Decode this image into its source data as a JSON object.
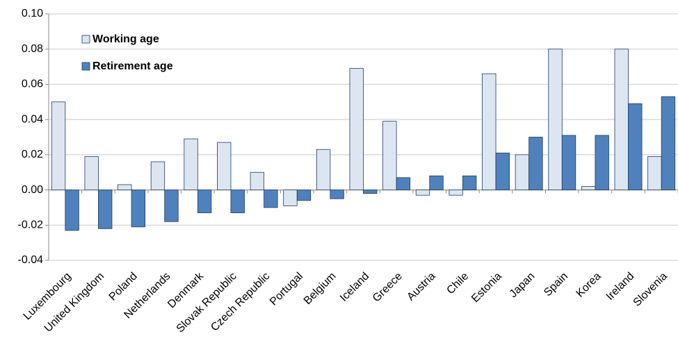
{
  "chart_data": {
    "type": "bar",
    "categories": [
      "Luxembourg",
      "United Kingdom",
      "Poland",
      "Netherlands",
      "Denmark",
      "Slovak Republic",
      "Czech Republic",
      "Portugal",
      "Belgium",
      "Iceland",
      "Greece",
      "Austria",
      "Chile",
      "Estonia",
      "Japan",
      "Spain",
      "Korea",
      "Ireland",
      "Slovenia"
    ],
    "series": [
      {
        "name": "Working age",
        "color": "#dce6f2",
        "values": [
          0.05,
          0.019,
          0.003,
          0.016,
          0.029,
          0.027,
          0.01,
          -0.009,
          0.023,
          0.069,
          0.039,
          -0.003,
          -0.003,
          0.066,
          0.02,
          0.08,
          0.002,
          0.08,
          0.019
        ]
      },
      {
        "name": "Retirement age",
        "color": "#4f81bd",
        "values": [
          -0.023,
          -0.022,
          -0.021,
          -0.018,
          -0.013,
          -0.013,
          -0.01,
          -0.006,
          -0.005,
          -0.002,
          0.007,
          0.008,
          0.008,
          0.021,
          0.03,
          0.031,
          0.031,
          0.049,
          0.053
        ]
      }
    ],
    "ylim": [
      -0.04,
      0.1
    ],
    "yticks": [
      {
        "value": 0.1,
        "label": "0.10"
      },
      {
        "value": 0.08,
        "label": "0.08"
      },
      {
        "value": 0.06,
        "label": "0.06"
      },
      {
        "value": 0.04,
        "label": "0.04"
      },
      {
        "value": 0.02,
        "label": "0.02"
      },
      {
        "value": 0,
        "label": "0.00"
      },
      {
        "value": -0.02,
        "label": "-0.02"
      },
      {
        "value": -0.04,
        "label": "-0.04"
      }
    ],
    "grid": true,
    "legend": "top-left"
  }
}
